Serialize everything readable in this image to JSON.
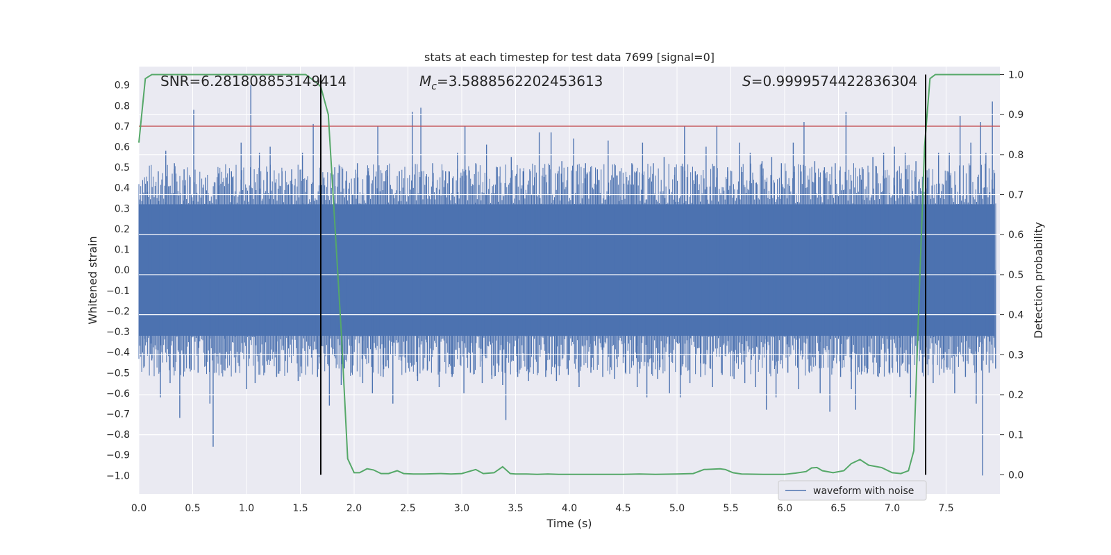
{
  "chart_data": {
    "type": "line",
    "title": "stats at each timestep for test data 7699 [signal=0]",
    "xlabel": "Time (s)",
    "ylabel": "Whitened strain",
    "y2label": "Detection probability",
    "xlim": [
      0.0,
      8.0
    ],
    "ylim": [
      -1.09,
      0.99
    ],
    "y2lim": [
      -0.048,
      1.02
    ],
    "x_ticks": [
      "0.0",
      "0.5",
      "1.0",
      "1.5",
      "2.0",
      "2.5",
      "3.0",
      "3.5",
      "4.0",
      "4.5",
      "5.0",
      "5.5",
      "6.0",
      "6.5",
      "7.0",
      "7.5"
    ],
    "y_ticks": [
      "0.9",
      "0.8",
      "0.7",
      "0.6",
      "0.5",
      "0.4",
      "0.3",
      "0.2",
      "0.1",
      "0.0",
      "−0.1",
      "−0.2",
      "−0.3",
      "−0.4",
      "−0.5",
      "−0.6",
      "−0.7",
      "−0.8",
      "−0.9",
      "−1.0"
    ],
    "y2_ticks": [
      "1.0",
      "0.9",
      "0.8",
      "0.7",
      "0.6",
      "0.5",
      "0.4",
      "0.3",
      "0.2",
      "0.1",
      "0.0"
    ],
    "annotations": {
      "snr": "SNR=6.281808853149414",
      "mc_symbol": "M",
      "mc_subscript": "c",
      "mc_value": "=3.5888562202453613",
      "s_symbol": "S",
      "s_value": "=0.9999574422836304"
    },
    "threshold": {
      "value": 0.7,
      "color": "#c44e52"
    },
    "vertical_markers": [
      1.69,
      7.31
    ],
    "waveform": {
      "name": "waveform with noise",
      "color": "#4c72b0",
      "band": 0.32,
      "noise_peaks": [
        [
          0.05,
          -0.47
        ],
        [
          0.08,
          0.38
        ],
        [
          0.12,
          -0.44
        ],
        [
          0.18,
          0.48
        ],
        [
          0.2,
          -0.62
        ],
        [
          0.25,
          0.58
        ],
        [
          0.29,
          -0.55
        ],
        [
          0.33,
          0.52
        ],
        [
          0.38,
          -0.72
        ],
        [
          0.42,
          0.49
        ],
        [
          0.47,
          -0.48
        ],
        [
          0.51,
          0.78
        ],
        [
          0.55,
          -0.5
        ],
        [
          0.62,
          0.45
        ],
        [
          0.66,
          -0.65
        ],
        [
          0.69,
          -0.86
        ],
        [
          0.74,
          0.47
        ],
        [
          0.8,
          -0.49
        ],
        [
          0.86,
          0.48
        ],
        [
          0.9,
          -0.5
        ],
        [
          0.95,
          0.62
        ],
        [
          1.0,
          -0.58
        ],
        [
          1.04,
          0.9
        ],
        [
          1.08,
          -0.55
        ],
        [
          1.12,
          0.57
        ],
        [
          1.17,
          -0.5
        ],
        [
          1.22,
          0.6
        ],
        [
          1.28,
          -0.52
        ],
        [
          1.33,
          0.48
        ],
        [
          1.38,
          -0.5
        ],
        [
          1.42,
          0.49
        ],
        [
          1.48,
          -0.54
        ],
        [
          1.52,
          0.57
        ],
        [
          1.57,
          -0.47
        ],
        [
          1.62,
          0.71
        ],
        [
          1.66,
          -0.52
        ],
        [
          1.72,
          0.45
        ],
        [
          1.77,
          -0.66
        ],
        [
          1.82,
          0.5
        ],
        [
          1.88,
          -0.56
        ],
        [
          1.93,
          0.48
        ],
        [
          1.98,
          -0.5
        ],
        [
          2.03,
          0.52
        ],
        [
          2.08,
          -0.55
        ],
        [
          2.13,
          0.48
        ],
        [
          2.17,
          -0.6
        ],
        [
          2.22,
          0.7
        ],
        [
          2.27,
          -0.52
        ],
        [
          2.31,
          0.51
        ],
        [
          2.36,
          -0.65
        ],
        [
          2.42,
          0.48
        ],
        [
          2.48,
          -0.5
        ],
        [
          2.54,
          0.77
        ],
        [
          2.59,
          -0.54
        ],
        [
          2.62,
          0.79
        ],
        [
          2.68,
          -0.49
        ],
        [
          2.73,
          0.52
        ],
        [
          2.79,
          -0.57
        ],
        [
          2.85,
          0.48
        ],
        [
          2.91,
          -0.52
        ],
        [
          2.96,
          0.57
        ],
        [
          3.02,
          -0.6
        ],
        [
          3.03,
          0.7
        ],
        [
          3.08,
          -0.5
        ],
        [
          3.13,
          0.52
        ],
        [
          3.19,
          -0.55
        ],
        [
          3.23,
          0.61
        ],
        [
          3.28,
          -0.53
        ],
        [
          3.33,
          0.5
        ],
        [
          3.38,
          -0.56
        ],
        [
          3.41,
          -0.73
        ],
        [
          3.46,
          0.55
        ],
        [
          3.52,
          -0.52
        ],
        [
          3.57,
          0.48
        ],
        [
          3.62,
          -0.54
        ],
        [
          3.68,
          0.51
        ],
        [
          3.72,
          0.67
        ],
        [
          3.78,
          -0.52
        ],
        [
          3.83,
          0.67
        ],
        [
          3.88,
          -0.54
        ],
        [
          3.93,
          0.53
        ],
        [
          3.99,
          -0.51
        ],
        [
          4.04,
          0.64
        ],
        [
          4.09,
          -0.57
        ],
        [
          4.15,
          0.52
        ],
        [
          4.2,
          -0.5
        ],
        [
          4.26,
          0.49
        ],
        [
          4.31,
          -0.52
        ],
        [
          4.36,
          0.63
        ],
        [
          4.42,
          -0.53
        ],
        [
          4.47,
          0.48
        ],
        [
          4.52,
          -0.5
        ],
        [
          4.58,
          0.52
        ],
        [
          4.63,
          -0.57
        ],
        [
          4.68,
          0.62
        ],
        [
          4.72,
          -0.62
        ],
        [
          4.78,
          0.52
        ],
        [
          4.82,
          -0.53
        ],
        [
          4.88,
          0.55
        ],
        [
          4.93,
          -0.6
        ],
        [
          4.98,
          0.5
        ],
        [
          5.03,
          -0.62
        ],
        [
          5.07,
          0.7
        ],
        [
          5.12,
          -0.55
        ],
        [
          5.17,
          0.48
        ],
        [
          5.22,
          -0.52
        ],
        [
          5.27,
          0.6
        ],
        [
          5.33,
          -0.57
        ],
        [
          5.37,
          0.7
        ],
        [
          5.42,
          -0.51
        ],
        [
          5.47,
          0.5
        ],
        [
          5.53,
          -0.53
        ],
        [
          5.58,
          0.62
        ],
        [
          5.63,
          -0.55
        ],
        [
          5.68,
          0.57
        ],
        [
          5.73,
          -0.57
        ],
        [
          5.79,
          0.53
        ],
        [
          5.83,
          -0.68
        ],
        [
          5.88,
          0.55
        ],
        [
          5.92,
          -0.62
        ],
        [
          5.97,
          0.52
        ],
        [
          6.03,
          -0.5
        ],
        [
          6.08,
          0.62
        ],
        [
          6.13,
          -0.58
        ],
        [
          6.18,
          0.72
        ],
        [
          6.23,
          -0.5
        ],
        [
          6.28,
          0.53
        ],
        [
          6.33,
          -0.6
        ],
        [
          6.37,
          0.5
        ],
        [
          6.42,
          -0.69
        ],
        [
          6.47,
          0.52
        ],
        [
          6.52,
          -0.52
        ],
        [
          6.57,
          0.77
        ],
        [
          6.62,
          -0.58
        ],
        [
          6.66,
          -0.68
        ],
        [
          6.72,
          0.5
        ],
        [
          6.77,
          -0.5
        ],
        [
          6.82,
          0.55
        ],
        [
          6.87,
          -0.52
        ],
        [
          6.92,
          0.57
        ],
        [
          6.97,
          -0.5
        ],
        [
          7.02,
          0.6
        ],
        [
          7.07,
          -0.52
        ],
        [
          7.12,
          0.57
        ],
        [
          7.17,
          -0.62
        ],
        [
          7.22,
          0.53
        ],
        [
          7.28,
          -0.5
        ],
        [
          7.33,
          0.45
        ],
        [
          7.38,
          -0.55
        ],
        [
          7.43,
          0.57
        ],
        [
          7.48,
          -0.5
        ],
        [
          7.53,
          0.57
        ],
        [
          7.58,
          -0.6
        ],
        [
          7.63,
          0.75
        ],
        [
          7.68,
          -0.52
        ],
        [
          7.73,
          0.62
        ],
        [
          7.78,
          -0.65
        ],
        [
          7.82,
          0.72
        ],
        [
          7.84,
          -1.0
        ],
        [
          7.87,
          0.57
        ],
        [
          7.9,
          -0.5
        ],
        [
          7.93,
          0.82
        ],
        [
          7.96,
          -0.48
        ]
      ]
    },
    "detection_probability": {
      "color": "#55a868",
      "x": [
        0.0,
        0.06,
        0.12,
        0.18,
        0.3,
        0.5,
        0.8,
        1.0,
        1.2,
        1.4,
        1.55,
        1.65,
        1.69,
        1.76,
        1.8,
        1.88,
        1.94,
        2.0,
        2.05,
        2.12,
        2.18,
        2.25,
        2.32,
        2.4,
        2.46,
        2.55,
        2.65,
        2.8,
        2.9,
        3.0,
        3.13,
        3.2,
        3.3,
        3.38,
        3.45,
        3.5,
        3.6,
        3.7,
        3.8,
        3.9,
        4.0,
        4.5,
        4.65,
        4.8,
        5.0,
        5.15,
        5.25,
        5.4,
        5.45,
        5.52,
        5.6,
        5.8,
        6.0,
        6.1,
        6.2,
        6.25,
        6.3,
        6.35,
        6.45,
        6.55,
        6.62,
        6.7,
        6.78,
        6.9,
        7.0,
        7.08,
        7.15,
        7.2,
        7.25,
        7.3,
        7.35,
        7.4,
        7.5,
        8.0
      ],
      "y": [
        0.83,
        0.99,
        1.0,
        1.0,
        1.0,
        1.0,
        1.0,
        1.0,
        1.0,
        1.0,
        1.0,
        0.98,
        0.97,
        0.9,
        0.72,
        0.36,
        0.04,
        0.005,
        0.005,
        0.015,
        0.012,
        0.003,
        0.003,
        0.01,
        0.003,
        0.002,
        0.002,
        0.003,
        0.002,
        0.003,
        0.013,
        0.003,
        0.005,
        0.02,
        0.003,
        0.002,
        0.002,
        0.001,
        0.002,
        0.001,
        0.001,
        0.001,
        0.002,
        0.001,
        0.002,
        0.003,
        0.013,
        0.015,
        0.013,
        0.005,
        0.002,
        0.001,
        0.001,
        0.004,
        0.008,
        0.017,
        0.018,
        0.01,
        0.005,
        0.01,
        0.028,
        0.038,
        0.024,
        0.018,
        0.005,
        0.003,
        0.01,
        0.06,
        0.45,
        0.82,
        0.99,
        1.0,
        1.0,
        1.0
      ]
    },
    "legend": {
      "entries": [
        "waveform with noise"
      ],
      "placement": "lower-right"
    },
    "grid": true
  }
}
